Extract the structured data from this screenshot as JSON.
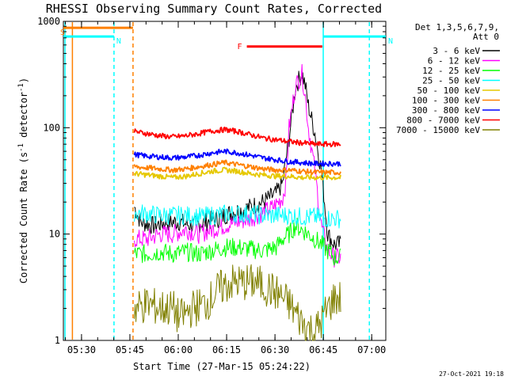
{
  "chart_data": {
    "type": "line",
    "title": "RHESSI Observing Summary Count Rates, Corrected",
    "xlabel": "Start Time (27-Mar-15 05:24:22)",
    "ylabel": "Corrected Count Rate (s⁻¹ detector⁻¹)",
    "ylabel_text": "Corrected Count Rate (s",
    "ylabel_sup1": "-1",
    "ylabel_mid": " detector",
    "ylabel_sup2": "-1",
    "ylabel_end": ")",
    "yscale": "log",
    "ylim": [
      1,
      1000
    ],
    "xlim_minutes": [
      0,
      100
    ],
    "x_unit": "minutes after 05:24:22",
    "x_ticks": [
      {
        "label": "05:30",
        "value": 5.63
      },
      {
        "label": "05:45",
        "value": 20.63
      },
      {
        "label": "06:00",
        "value": 35.63
      },
      {
        "label": "06:15",
        "value": 50.63
      },
      {
        "label": "06:30",
        "value": 65.63
      },
      {
        "label": "06:45",
        "value": 80.63
      },
      {
        "label": "07:00",
        "value": 95.63
      }
    ],
    "y_ticks": [
      {
        "label": "1",
        "value": 1
      },
      {
        "label": "10",
        "value": 10
      },
      {
        "label": "100",
        "value": 100
      },
      {
        "label": "1000",
        "value": 1000
      }
    ],
    "legend_header": [
      "Det 1,3,5,6,7,9,",
      "Att 0"
    ],
    "series": [
      {
        "name": "3 - 6 keV",
        "color": "#000000",
        "x": [
          22,
          24,
          28,
          32,
          36,
          40,
          44,
          48,
          52,
          56,
          60,
          62,
          64,
          66,
          68,
          70,
          72,
          74,
          75,
          76,
          78,
          80,
          82,
          84,
          86
        ],
        "y": [
          18,
          13,
          12,
          13,
          13,
          12,
          13,
          14,
          16,
          17,
          19,
          20,
          22,
          24,
          30,
          80,
          240,
          330,
          250,
          160,
          90,
          40,
          10,
          8,
          8
        ]
      },
      {
        "name": "6 - 12 keV",
        "color": "#ff00ff",
        "x": [
          22,
          26,
          30,
          34,
          38,
          42,
          46,
          50,
          54,
          58,
          62,
          64,
          66,
          68,
          69,
          70,
          72,
          74,
          75,
          76,
          78,
          80,
          82,
          84,
          86
        ],
        "y": [
          9,
          9,
          10,
          10,
          11,
          10,
          11,
          12,
          13,
          14,
          16,
          17,
          19,
          22,
          30,
          100,
          250,
          320,
          200,
          100,
          40,
          12,
          7,
          6,
          6
        ]
      },
      {
        "name": "12 - 25 keV",
        "color": "#00ff00",
        "x": [
          22,
          26,
          30,
          34,
          38,
          42,
          46,
          50,
          54,
          58,
          62,
          66,
          68,
          70,
          72,
          74,
          76,
          78,
          80,
          82,
          84,
          86
        ],
        "y": [
          6.5,
          6.5,
          6.8,
          6.5,
          6.8,
          6.5,
          7,
          7.5,
          7.5,
          7.2,
          7,
          7.5,
          9,
          10,
          12,
          11,
          10,
          9,
          8,
          7,
          6,
          6
        ]
      },
      {
        "name": "25 - 50 keV",
        "color": "#00ffff",
        "x": [
          22,
          26,
          30,
          34,
          38,
          42,
          46,
          50,
          54,
          58,
          62,
          66,
          70,
          74,
          78,
          82,
          86
        ],
        "y": [
          16,
          15.5,
          15,
          15,
          15,
          14.5,
          15,
          15.5,
          15.5,
          15.5,
          15,
          15,
          15,
          14.5,
          14.5,
          14,
          14
        ]
      },
      {
        "name": "50 - 100 keV",
        "color": "#e6c800",
        "x": [
          22,
          26,
          30,
          34,
          38,
          42,
          46,
          50,
          54,
          58,
          62,
          66,
          70,
          74,
          78,
          82,
          86
        ],
        "y": [
          37,
          36,
          35,
          34,
          35,
          37,
          39,
          40,
          39,
          37,
          36,
          35,
          35,
          34,
          34,
          34,
          34
        ]
      },
      {
        "name": "100 - 300 keV",
        "color": "#ff8000",
        "x": [
          22,
          26,
          30,
          34,
          38,
          42,
          46,
          50,
          54,
          58,
          62,
          66,
          70,
          74,
          78,
          82,
          86
        ],
        "y": [
          43,
          42,
          41,
          40,
          41,
          43,
          45,
          47,
          45,
          43,
          41,
          40,
          40,
          39,
          38,
          38,
          38
        ]
      },
      {
        "name": "300 - 800 keV",
        "color": "#0000ff",
        "x": [
          22,
          26,
          30,
          34,
          38,
          42,
          46,
          50,
          54,
          58,
          62,
          66,
          70,
          74,
          78,
          82,
          86
        ],
        "y": [
          56,
          54,
          53,
          52,
          53,
          55,
          58,
          60,
          58,
          55,
          52,
          50,
          48,
          47,
          46,
          46,
          46
        ]
      },
      {
        "name": "800 - 7000 keV",
        "color": "#ff0000",
        "x": [
          22,
          26,
          30,
          34,
          38,
          42,
          46,
          50,
          54,
          58,
          62,
          66,
          70,
          74,
          78,
          82,
          86
        ],
        "y": [
          92,
          88,
          84,
          82,
          84,
          88,
          93,
          96,
          92,
          86,
          80,
          77,
          74,
          72,
          70,
          70,
          70
        ]
      },
      {
        "name": "7000 - 15000 keV",
        "color": "#808000",
        "x": [
          22,
          26,
          30,
          34,
          36,
          40,
          44,
          46,
          48,
          52,
          56,
          60,
          64,
          66,
          68,
          70,
          72,
          74,
          76,
          78,
          80,
          82,
          84,
          86
        ],
        "y": [
          2,
          2.2,
          2,
          2,
          1.6,
          2,
          2.2,
          2.5,
          3,
          3.5,
          3.5,
          3.5,
          3,
          2.8,
          2.5,
          2.2,
          1.8,
          1.5,
          1.3,
          1.2,
          1.5,
          2,
          2.5,
          2.5
        ]
      }
    ],
    "annotations": [
      {
        "label": "S",
        "type": "SAA flag",
        "color": "#ff8000",
        "x_start": 0,
        "x_end": 21.6,
        "level": 870
      },
      {
        "label": "N",
        "type": "Night",
        "color": "#00ffff",
        "x_start": 0,
        "x_end": 15.7,
        "level": 720
      },
      {
        "label": "N",
        "type": "Night",
        "color": "#00ffff",
        "x_start": 80.6,
        "x_end": 100,
        "level": 720
      },
      {
        "label": "F",
        "type": "Flare",
        "color": "#ff0000",
        "x_start": 56.9,
        "x_end": 80.3,
        "level": 580
      }
    ],
    "vertical_markers": [
      {
        "x": 0.5,
        "color": "#00ffff",
        "style": "solid"
      },
      {
        "x": 2.8,
        "color": "#ff8000",
        "style": "solid"
      },
      {
        "x": 15.7,
        "color": "#00ffff",
        "style": "dashed"
      },
      {
        "x": 21.6,
        "color": "#ff8000",
        "style": "dashed"
      },
      {
        "x": 80.6,
        "color": "#00ffff",
        "style": "solid"
      },
      {
        "x": 94.9,
        "color": "#00ffff",
        "style": "dashed"
      }
    ]
  },
  "footer": {
    "timestamp": "27-Oct-2021 19:18"
  }
}
